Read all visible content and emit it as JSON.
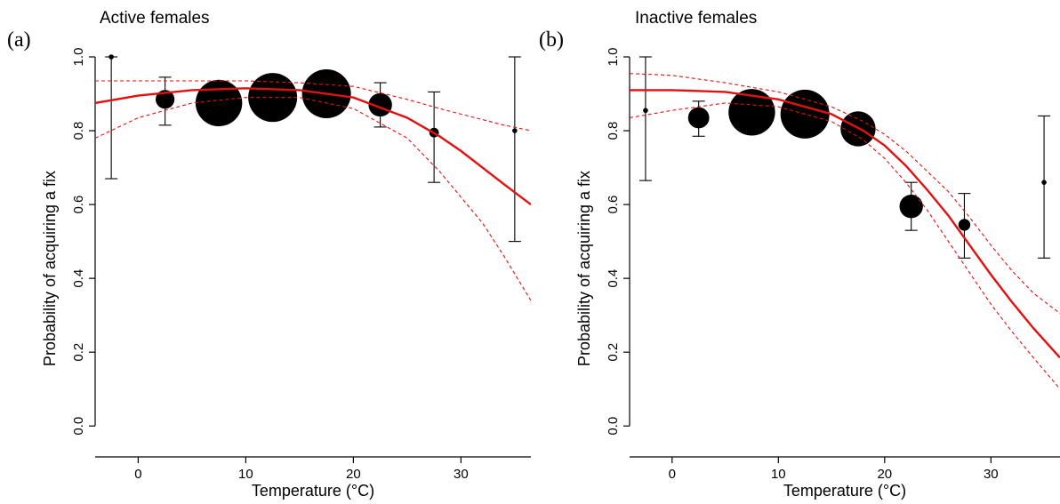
{
  "chart_data": [
    {
      "type": "scatter",
      "panel_letter": "(a)",
      "title": "Active females",
      "xlabel": "Temperature (°C)",
      "ylabel": "Probability of acquiring a fix",
      "xlim": [
        -4,
        36.5
      ],
      "ylim": [
        -0.05,
        1.0
      ],
      "xticks": [
        0,
        10,
        20,
        30
      ],
      "yticks": [
        0.0,
        0.2,
        0.4,
        0.6,
        0.8,
        1.0
      ],
      "points": [
        {
          "x": -2.5,
          "y": 1.0,
          "lower": 0.67,
          "upper": 1.0,
          "size": 0.05
        },
        {
          "x": 2.5,
          "y": 0.885,
          "lower": 0.815,
          "upper": 0.945,
          "size": 0.35
        },
        {
          "x": 7.5,
          "y": 0.875,
          "lower": 0.875,
          "upper": 0.875,
          "size": 0.95
        },
        {
          "x": 12.5,
          "y": 0.89,
          "lower": 0.89,
          "upper": 0.89,
          "size": 1.0
        },
        {
          "x": 17.5,
          "y": 0.9,
          "lower": 0.9,
          "upper": 0.9,
          "size": 1.0
        },
        {
          "x": 22.5,
          "y": 0.87,
          "lower": 0.81,
          "upper": 0.93,
          "size": 0.45
        },
        {
          "x": 27.5,
          "y": 0.795,
          "lower": 0.66,
          "upper": 0.905,
          "size": 0.15
        },
        {
          "x": 35,
          "y": 0.8,
          "lower": 0.5,
          "upper": 1.0,
          "size": 0.05
        }
      ],
      "fit": {
        "x": [
          -4,
          0,
          5,
          10,
          15,
          20,
          25,
          28,
          30,
          32,
          34,
          36.5
        ],
        "y": [
          0.875,
          0.895,
          0.91,
          0.915,
          0.91,
          0.89,
          0.835,
          0.785,
          0.745,
          0.7,
          0.655,
          0.6
        ]
      },
      "ci_lower": {
        "x": [
          -4,
          0,
          5,
          10,
          15,
          20,
          25,
          28,
          30,
          32,
          34,
          36.5
        ],
        "y": [
          0.78,
          0.835,
          0.875,
          0.89,
          0.89,
          0.86,
          0.78,
          0.69,
          0.62,
          0.55,
          0.46,
          0.34
        ]
      },
      "ci_upper": {
        "x": [
          -4,
          0,
          5,
          10,
          15,
          20,
          25,
          28,
          30,
          32,
          34,
          36.5
        ],
        "y": [
          0.935,
          0.935,
          0.935,
          0.935,
          0.93,
          0.92,
          0.885,
          0.86,
          0.845,
          0.83,
          0.815,
          0.8
        ]
      }
    },
    {
      "type": "scatter",
      "panel_letter": "(b)",
      "title": "Inactive females",
      "xlabel": "Temperature (°C)",
      "ylabel": "Probability of acquiring a fix",
      "xlim": [
        -4,
        36.5
      ],
      "ylim": [
        -0.05,
        1.0
      ],
      "xticks": [
        0,
        10,
        20,
        30
      ],
      "yticks": [
        0.0,
        0.2,
        0.4,
        0.6,
        0.8,
        1.0
      ],
      "points": [
        {
          "x": -2.5,
          "y": 0.855,
          "lower": 0.665,
          "upper": 1.0,
          "size": 0.05
        },
        {
          "x": 2.5,
          "y": 0.835,
          "lower": 0.785,
          "upper": 0.88,
          "size": 0.4
        },
        {
          "x": 7.5,
          "y": 0.85,
          "lower": 0.85,
          "upper": 0.85,
          "size": 0.95
        },
        {
          "x": 12.5,
          "y": 0.845,
          "lower": 0.845,
          "upper": 0.845,
          "size": 1.0
        },
        {
          "x": 17.5,
          "y": 0.805,
          "lower": 0.805,
          "upper": 0.805,
          "size": 0.7
        },
        {
          "x": 22.5,
          "y": 0.595,
          "lower": 0.53,
          "upper": 0.66,
          "size": 0.45
        },
        {
          "x": 27.5,
          "y": 0.545,
          "lower": 0.455,
          "upper": 0.63,
          "size": 0.2
        },
        {
          "x": 35,
          "y": 0.66,
          "lower": 0.455,
          "upper": 0.84,
          "size": 0.05
        }
      ],
      "fit": {
        "x": [
          -4,
          0,
          5,
          10,
          15,
          18,
          20,
          22,
          24,
          26,
          28,
          30,
          32,
          34,
          36.5
        ],
        "y": [
          0.91,
          0.91,
          0.905,
          0.885,
          0.845,
          0.8,
          0.76,
          0.705,
          0.64,
          0.57,
          0.49,
          0.41,
          0.335,
          0.265,
          0.185
        ]
      },
      "ci_lower": {
        "x": [
          -4,
          0,
          5,
          10,
          15,
          18,
          20,
          22,
          24,
          26,
          28,
          30,
          32,
          34,
          36.5
        ],
        "y": [
          0.835,
          0.855,
          0.875,
          0.865,
          0.825,
          0.775,
          0.725,
          0.66,
          0.585,
          0.5,
          0.415,
          0.33,
          0.255,
          0.185,
          0.1
        ]
      },
      "ci_upper": {
        "x": [
          -4,
          0,
          5,
          10,
          15,
          18,
          20,
          22,
          24,
          26,
          28,
          30,
          32,
          34,
          36.5
        ],
        "y": [
          0.955,
          0.95,
          0.93,
          0.905,
          0.865,
          0.825,
          0.79,
          0.745,
          0.69,
          0.635,
          0.565,
          0.49,
          0.42,
          0.36,
          0.305
        ]
      }
    }
  ]
}
